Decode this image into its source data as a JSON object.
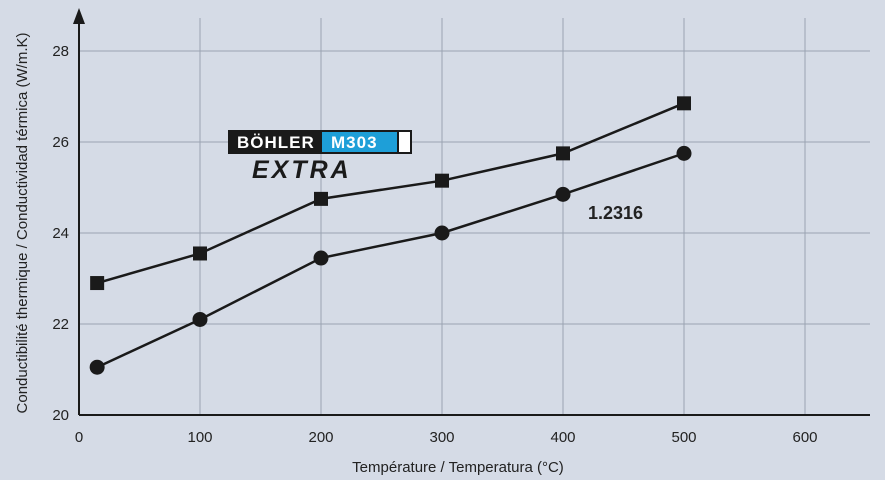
{
  "chart_data": {
    "type": "line",
    "xlabel": "Température / Temperatura (°C)",
    "ylabel": "Conductibilité thermique / Conductividad térmica (W/m.K)",
    "xlim": [
      0,
      650
    ],
    "ylim": [
      20,
      29
    ],
    "xticks": [
      0,
      100,
      200,
      300,
      400,
      500,
      600
    ],
    "yticks": [
      20,
      22,
      24,
      26,
      28
    ],
    "grid": true,
    "colors": {
      "background": "#d5dbe6",
      "line": "#1a1a1a",
      "grid": "#9aa3b2",
      "logo_dark": "#1a1a1a",
      "logo_blue": "#1e9fd8"
    },
    "series": [
      {
        "marker": "square",
        "x": [
          15,
          100,
          200,
          300,
          400,
          500
        ],
        "y": [
          22.9,
          23.55,
          24.75,
          25.15,
          25.75,
          26.85
        ]
      },
      {
        "name": "1.2316",
        "marker": "circle",
        "x": [
          15,
          100,
          200,
          300,
          400,
          500
        ],
        "y": [
          21.05,
          22.1,
          23.45,
          24.0,
          24.85,
          25.75
        ]
      }
    ],
    "annotations": [
      {
        "text": "1.2316",
        "series": 1
      }
    ],
    "logo": {
      "brand": "BÖHLER",
      "grade": "M303",
      "suffix": "EXTRA"
    }
  }
}
